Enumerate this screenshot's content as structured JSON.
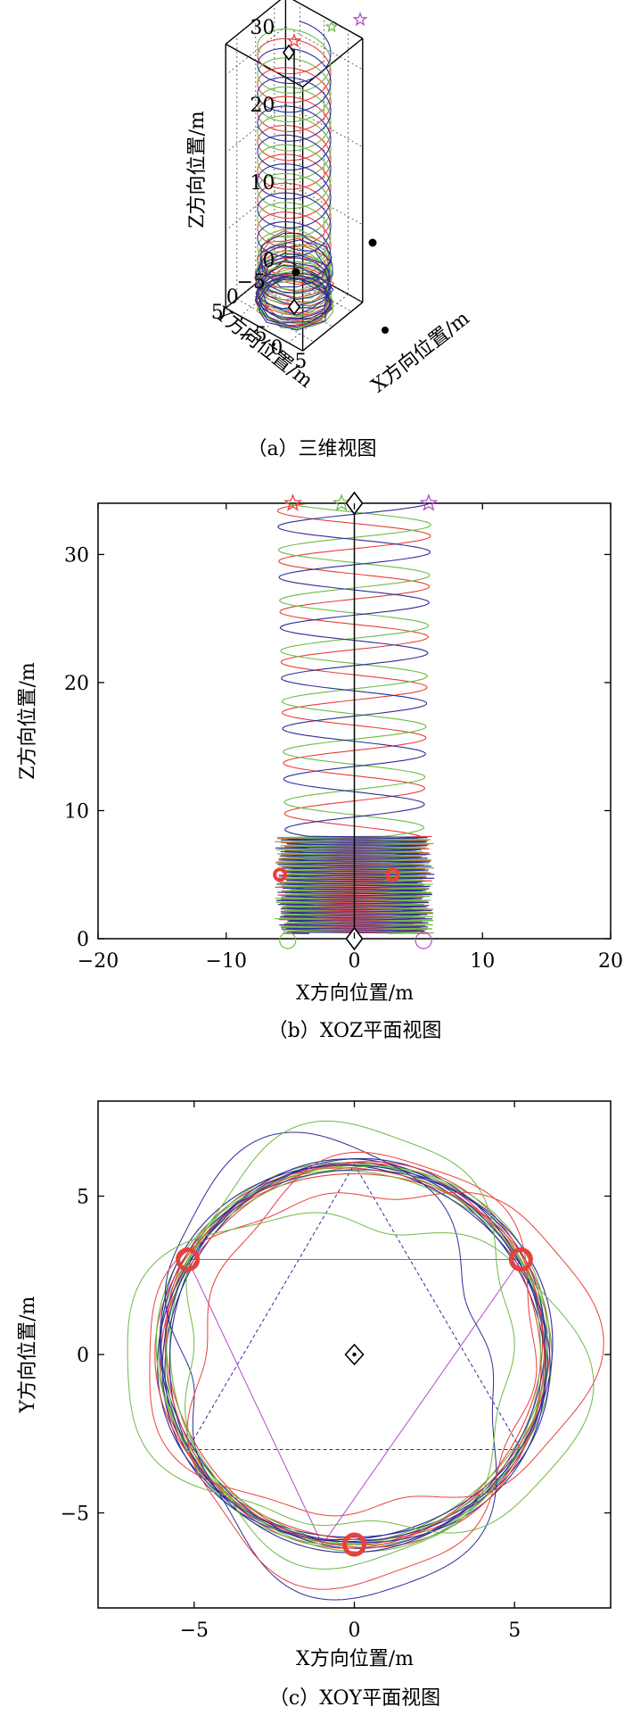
{
  "colors": {
    "red": "#e8403a",
    "green": "#6dbb45",
    "blue": "#2e2e9a",
    "purple": "#b04cc8",
    "black": "#000000"
  },
  "chart_data": [
    {
      "type": "line",
      "view": "3d",
      "caption": "（a）三维视图",
      "xlabel": "X方向位置/m",
      "ylabel": "Y方向位置/m",
      "zlabel": "Z方向位置/m",
      "xticks": [
        -5,
        0,
        5
      ],
      "yticks": [
        5,
        0,
        -5
      ],
      "zticks": [
        0,
        10,
        20,
        30
      ],
      "xlim": [
        -8,
        8
      ],
      "ylim": [
        -8,
        8
      ],
      "zlim": [
        0,
        34
      ],
      "grid": true,
      "markers": {
        "start_stars": 3,
        "diamonds": [
          {
            "x": 0,
            "y": 0,
            "z": 0
          },
          {
            "x": 0,
            "y": 0,
            "z": 33.5
          }
        ],
        "circles": [
          {
            "x": -5.2,
            "y": 3,
            "z": 5
          },
          {
            "x": 5.2,
            "y": 3,
            "z": 5
          },
          {
            "x": 0,
            "y": -6,
            "z": 0.5
          }
        ]
      }
    },
    {
      "type": "line",
      "view": "XOZ",
      "caption": "（b）XOZ平面视图",
      "xlabel": "X方向位置/m",
      "ylabel": "Z方向位置/m",
      "xlim": [
        -20,
        20
      ],
      "ylim": [
        0,
        34
      ],
      "xticks": [
        -20,
        -10,
        0,
        10,
        20
      ],
      "yticks": [
        0,
        10,
        20,
        30
      ],
      "series_colors": [
        "red",
        "green",
        "blue"
      ],
      "stars": [
        {
          "x": -4.8,
          "z": 34
        },
        {
          "x": -1,
          "z": 34
        },
        {
          "x": 5.8,
          "z": 34
        }
      ],
      "diamonds": [
        {
          "x": 0,
          "z": 34
        },
        {
          "x": 0,
          "z": 0
        }
      ],
      "circles": [
        {
          "x": -5.8,
          "z": 5
        },
        {
          "x": 3,
          "z": 5
        }
      ],
      "helix": {
        "radius": 6,
        "top_z": 34,
        "pitch": 4,
        "descent_turns": 20
      }
    },
    {
      "type": "line",
      "view": "XOY",
      "caption": "（c）XOY平面视图",
      "xlabel": "X方向位置/m",
      "ylabel": "Y方向位置/m",
      "xlim": [
        -8,
        8
      ],
      "ylim": [
        -8,
        8
      ],
      "xticks": [
        -5,
        0,
        5
      ],
      "yticks": [
        -5,
        0,
        5
      ],
      "circle_radius": 6,
      "targets": [
        {
          "x": -5.2,
          "y": 3
        },
        {
          "x": 5.2,
          "y": 3
        },
        {
          "x": 0,
          "y": -6
        }
      ],
      "triangle_up": [
        {
          "x": 0,
          "y": 6
        },
        {
          "x": 5.2,
          "y": -3
        },
        {
          "x": -5.2,
          "y": -3
        }
      ],
      "triangle_down": [
        {
          "x": -5.2,
          "y": 3
        },
        {
          "x": 5.2,
          "y": 3
        },
        {
          "x": -1,
          "y": -6
        }
      ],
      "center": {
        "x": 0,
        "y": 0
      }
    }
  ]
}
